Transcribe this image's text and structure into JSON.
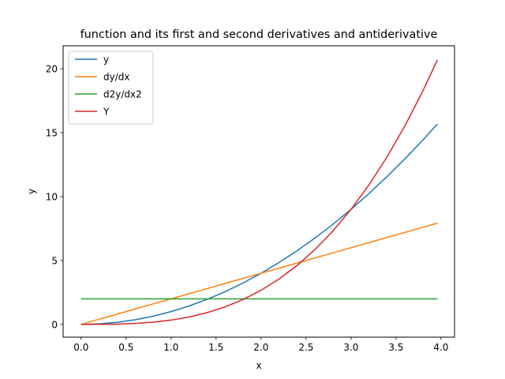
{
  "chart_data": {
    "type": "line",
    "title": "function and its first and second derivatives and antiderivative",
    "xlabel": "x",
    "ylabel": "y",
    "xlim": [
      -0.2,
      4.15
    ],
    "ylim": [
      -1.0,
      21.8
    ],
    "xticks": [
      0.0,
      0.5,
      1.0,
      1.5,
      2.0,
      2.5,
      3.0,
      3.5,
      4.0
    ],
    "xtick_labels": [
      "0.0",
      "0.5",
      "1.0",
      "1.5",
      "2.0",
      "2.5",
      "3.0",
      "3.5",
      "4.0"
    ],
    "yticks": [
      0,
      5,
      10,
      15,
      20
    ],
    "ytick_labels": [
      "0",
      "5",
      "10",
      "15",
      "20"
    ],
    "grid": false,
    "legend_position": "upper-left",
    "x": [
      0.0,
      0.2,
      0.4,
      0.6,
      0.8,
      1.0,
      1.2,
      1.4,
      1.6,
      1.8,
      2.0,
      2.2,
      2.4,
      2.6,
      2.8,
      3.0,
      3.2,
      3.4,
      3.6,
      3.8,
      3.96
    ],
    "series": [
      {
        "name": "y",
        "color": "#1f77b4",
        "values": [
          0.0,
          0.04,
          0.16,
          0.36,
          0.64,
          1.0,
          1.44,
          1.96,
          2.56,
          3.24,
          4.0,
          4.84,
          5.76,
          6.76,
          7.84,
          9.0,
          10.24,
          11.56,
          12.96,
          14.44,
          15.68
        ]
      },
      {
        "name": "dy/dx",
        "color": "#ff7f0e",
        "values": [
          0.0,
          0.4,
          0.8,
          1.2,
          1.6,
          2.0,
          2.4,
          2.8,
          3.2,
          3.6,
          4.0,
          4.4,
          4.8,
          5.2,
          5.6,
          6.0,
          6.4,
          6.8,
          7.2,
          7.6,
          7.92
        ]
      },
      {
        "name": "d2y/dx2",
        "color": "#2ca02c",
        "values": [
          2,
          2,
          2,
          2,
          2,
          2,
          2,
          2,
          2,
          2,
          2,
          2,
          2,
          2,
          2,
          2,
          2,
          2,
          2,
          2,
          2
        ]
      },
      {
        "name": "Y",
        "color": "#d62728",
        "values": [
          0.0,
          0.003,
          0.021,
          0.072,
          0.171,
          0.333,
          0.576,
          0.915,
          1.365,
          1.944,
          2.667,
          3.549,
          4.608,
          5.859,
          7.317,
          9.0,
          10.923,
          13.101,
          15.552,
          18.291,
          20.7
        ]
      }
    ]
  }
}
